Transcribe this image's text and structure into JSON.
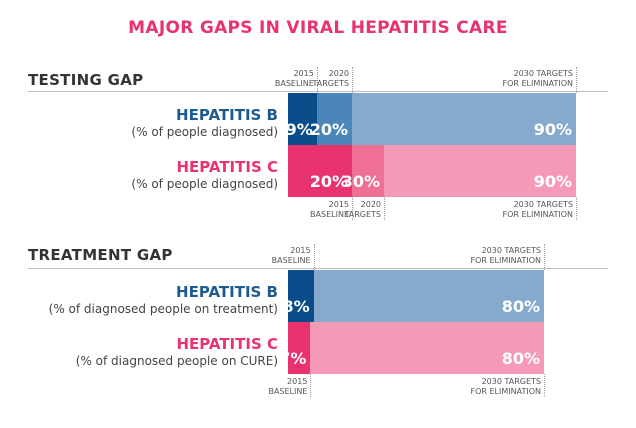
{
  "title": "MAJOR GAPS IN VIRAL HEPATITIS CARE",
  "colors": {
    "title": "#e8336e",
    "hep_b_title": "#1d5a8f",
    "hep_c_title": "#e8336e",
    "hep_b_baseline": "#0a4c8a",
    "hep_b_2020": "#4a86b8",
    "hep_b_2030": "#85aacd",
    "hep_c_baseline": "#e8336e",
    "hep_c_2020": "#ef6f95",
    "hep_c_2030": "#f49ab6"
  },
  "chart_data": [
    {
      "type": "bar",
      "title": "TESTING GAP",
      "xlim": [
        0,
        100
      ],
      "unit": "%",
      "rows": [
        {
          "name": "HEPATITIS B",
          "subtitle": "(% of people diagnosed)",
          "color": "#1d5a8f",
          "segments": [
            {
              "label": "9%",
              "value": 9,
              "color": "#0a4c8a"
            },
            {
              "label": "20%",
              "value": 20,
              "color": "#4a86b8"
            },
            {
              "label": "90%",
              "value": 90,
              "color": "#85aacd"
            }
          ]
        },
        {
          "name": "HEPATITIS C",
          "subtitle": "(% of people diagnosed)",
          "color": "#e8336e",
          "segments": [
            {
              "label": "20%",
              "value": 20,
              "color": "#e8336e"
            },
            {
              "label": "30%",
              "value": 30,
              "color": "#ef6f95"
            },
            {
              "label": "90%",
              "value": 90,
              "color": "#f49ab6"
            }
          ]
        }
      ],
      "markers_top": [
        {
          "lines": [
            "2015",
            "BASELINE"
          ],
          "value": 9
        },
        {
          "lines": [
            "2020",
            "TARGETS"
          ],
          "value": 20
        },
        {
          "lines": [
            "2030 TARGETS",
            "FOR ELIMINATION"
          ],
          "value": 90
        }
      ],
      "markers_bottom": [
        {
          "lines": [
            "2015",
            "BASELINE"
          ],
          "value": 20
        },
        {
          "lines": [
            "2020",
            "TARGETS"
          ],
          "value": 30
        },
        {
          "lines": [
            "2030 TARGETS",
            "FOR ELIMINATION"
          ],
          "value": 90
        }
      ]
    },
    {
      "type": "bar",
      "title": "TREATMENT GAP",
      "xlim": [
        0,
        100
      ],
      "unit": "%",
      "rows": [
        {
          "name": "HEPATITIS B",
          "subtitle": "(% of diagnosed people on treatment)",
          "color": "#1d5a8f",
          "segments": [
            {
              "label": "8%",
              "value": 8,
              "color": "#0a4c8a"
            },
            {
              "label": "80%",
              "value": 80,
              "color": "#85aacd"
            }
          ]
        },
        {
          "name": "HEPATITIS C",
          "subtitle": "(% of diagnosed people on CURE)",
          "color": "#e8336e",
          "segments": [
            {
              "label": "7%",
              "value": 7,
              "color": "#e8336e"
            },
            {
              "label": "80%",
              "value": 80,
              "color": "#f49ab6"
            }
          ]
        }
      ],
      "markers_top": [
        {
          "lines": [
            "2015",
            "BASELINE"
          ],
          "value": 8
        },
        {
          "lines": [
            "2030 TARGETS",
            "FOR ELIMINATION"
          ],
          "value": 80
        }
      ],
      "markers_bottom": [
        {
          "lines": [
            "2015",
            "BASELINE"
          ],
          "value": 7
        },
        {
          "lines": [
            "2030 TARGETS",
            "FOR ELIMINATION"
          ],
          "value": 80
        }
      ]
    }
  ]
}
